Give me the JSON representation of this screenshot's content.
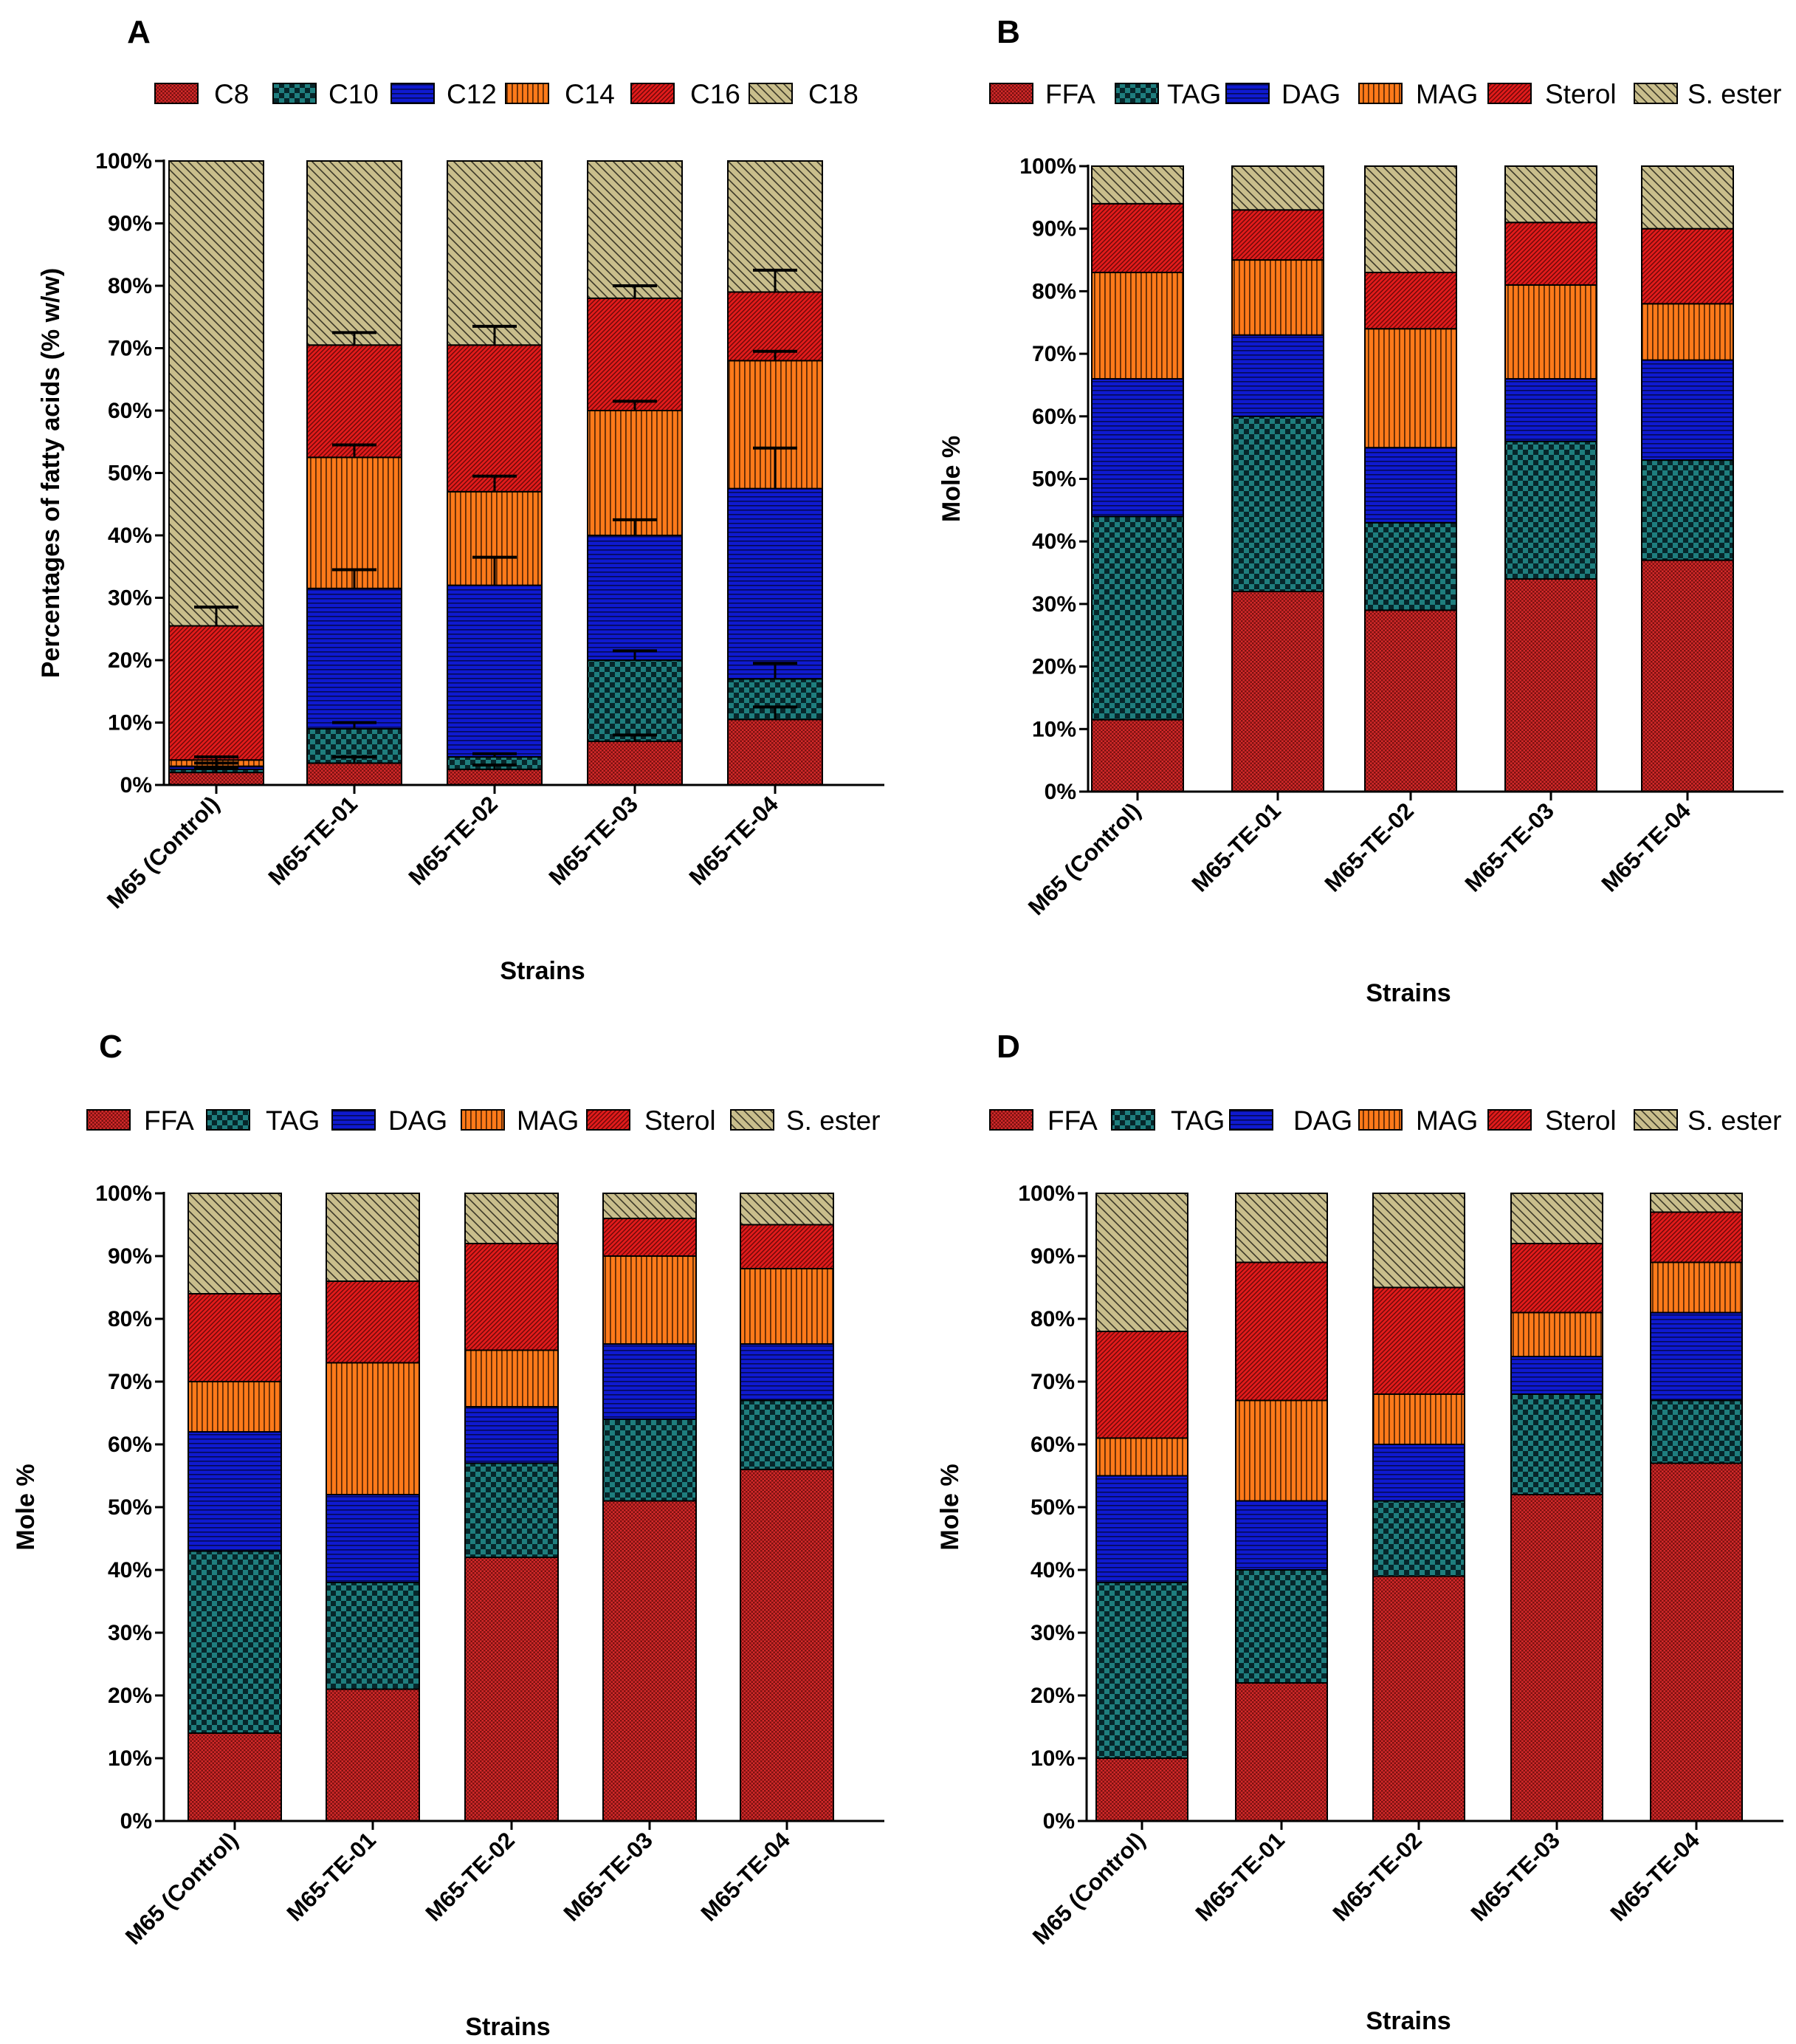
{
  "colors": {
    "C8": "#d42a2a",
    "C10": "#1f7e7e",
    "C12": "#0f1ad0",
    "C14": "#ff7a1a",
    "C16": "#e21b1b",
    "C18": "#c9be8c",
    "FFA": "#d42a2a",
    "TAG": "#1f7e7e",
    "DAG": "#0f1ad0",
    "MAG": "#ff7a1a",
    "Sterol": "#e21b1b",
    "S. ester": "#c9be8c"
  },
  "chart_data": [
    {
      "panel": "A",
      "type": "bar",
      "stacked": true,
      "ylabel": "Percentages of fatty acids (% w/w)",
      "xlabel": "Strains",
      "ylim": [
        0,
        100
      ],
      "yticks": [
        "0%",
        "10%",
        "20%",
        "30%",
        "40%",
        "50%",
        "60%",
        "70%",
        "80%",
        "90%",
        "100%"
      ],
      "categories": [
        "M65 (Control)",
        "M65-TE-01",
        "M65-TE-02",
        "M65-TE-03",
        "M65-TE-04"
      ],
      "series": [
        {
          "name": "C8",
          "values": [
            2,
            3.5,
            2.5,
            7,
            10.5
          ]
        },
        {
          "name": "C10",
          "values": [
            0.5,
            5.5,
            2,
            13,
            6.5
          ]
        },
        {
          "name": "C12",
          "values": [
            0.5,
            22.5,
            27.5,
            20,
            30.5
          ]
        },
        {
          "name": "C14",
          "values": [
            1,
            21,
            15,
            20,
            20.5
          ]
        },
        {
          "name": "C16",
          "values": [
            21.5,
            18,
            23.5,
            18,
            11
          ]
        },
        {
          "name": "C18",
          "values": [
            74.5,
            29.5,
            29.5,
            22,
            21
          ]
        }
      ],
      "error_bar_tops": [
        [
          2.8,
          4.5,
          3.2,
          8,
          12.5
        ],
        [
          3.5,
          10,
          5,
          21.5,
          19.5
        ],
        [
          4.5,
          34.5,
          36.5,
          42.5,
          54
        ],
        [
          4.5,
          54.5,
          49.5,
          61.5,
          69.5
        ],
        [
          28.5,
          72.5,
          73.5,
          80,
          82.5
        ]
      ],
      "legend_position": "top"
    },
    {
      "panel": "B",
      "type": "bar",
      "stacked": true,
      "ylabel": "Mole %",
      "xlabel": "Strains",
      "ylim": [
        0,
        100
      ],
      "yticks": [
        "0%",
        "10%",
        "20%",
        "30%",
        "40%",
        "50%",
        "60%",
        "70%",
        "80%",
        "90%",
        "100%"
      ],
      "categories": [
        "M65 (Control)",
        "M65-TE-01",
        "M65-TE-02",
        "M65-TE-03",
        "M65-TE-04"
      ],
      "series": [
        {
          "name": "FFA",
          "values": [
            11.5,
            32,
            29,
            34,
            37
          ]
        },
        {
          "name": "TAG",
          "values": [
            32.5,
            28,
            14,
            22,
            16
          ]
        },
        {
          "name": "DAG",
          "values": [
            22,
            13,
            12,
            10,
            16
          ]
        },
        {
          "name": "MAG",
          "values": [
            17,
            12,
            19,
            15,
            9
          ]
        },
        {
          "name": "Sterol",
          "values": [
            11,
            8,
            9,
            10,
            12
          ]
        },
        {
          "name": "S. ester",
          "values": [
            6,
            7,
            17,
            9,
            10
          ]
        }
      ],
      "legend_position": "top"
    },
    {
      "panel": "C",
      "type": "bar",
      "stacked": true,
      "ylabel": "Mole %",
      "xlabel": "Strains",
      "ylim": [
        0,
        100
      ],
      "yticks": [
        "0%",
        "10%",
        "20%",
        "30%",
        "40%",
        "50%",
        "60%",
        "70%",
        "80%",
        "90%",
        "100%"
      ],
      "categories": [
        "M65 (Control)",
        "M65-TE-01",
        "M65-TE-02",
        "M65-TE-03",
        "M65-TE-04"
      ],
      "series": [
        {
          "name": "FFA",
          "values": [
            14,
            21,
            42,
            51,
            56
          ]
        },
        {
          "name": "TAG",
          "values": [
            29,
            17,
            15,
            13,
            11
          ]
        },
        {
          "name": "DAG",
          "values": [
            19,
            14,
            9,
            12,
            9
          ]
        },
        {
          "name": "MAG",
          "values": [
            8,
            21,
            9,
            14,
            12
          ]
        },
        {
          "name": "Sterol",
          "values": [
            14,
            13,
            17,
            6,
            7
          ]
        },
        {
          "name": "S. ester",
          "values": [
            16,
            14,
            8,
            4,
            5
          ]
        }
      ],
      "legend_position": "top"
    },
    {
      "panel": "D",
      "type": "bar",
      "stacked": true,
      "ylabel": "Mole %",
      "xlabel": "Strains",
      "ylim": [
        0,
        100
      ],
      "yticks": [
        "0%",
        "10%",
        "20%",
        "30%",
        "40%",
        "50%",
        "60%",
        "70%",
        "80%",
        "90%",
        "100%"
      ],
      "categories": [
        "M65 (Control)",
        "M65-TE-01",
        "M65-TE-02",
        "M65-TE-03",
        "M65-TE-04"
      ],
      "series": [
        {
          "name": "FFA",
          "values": [
            10,
            22,
            39,
            52,
            57
          ]
        },
        {
          "name": "TAG",
          "values": [
            28,
            18,
            12,
            16,
            10
          ]
        },
        {
          "name": "DAG",
          "values": [
            17,
            11,
            9,
            6,
            14
          ]
        },
        {
          "name": "MAG",
          "values": [
            6,
            16,
            8,
            7,
            8
          ]
        },
        {
          "name": "Sterol",
          "values": [
            17,
            22,
            17,
            11,
            8
          ]
        },
        {
          "name": "S. ester",
          "values": [
            22,
            11,
            15,
            8,
            3
          ]
        }
      ],
      "legend_position": "top"
    }
  ]
}
